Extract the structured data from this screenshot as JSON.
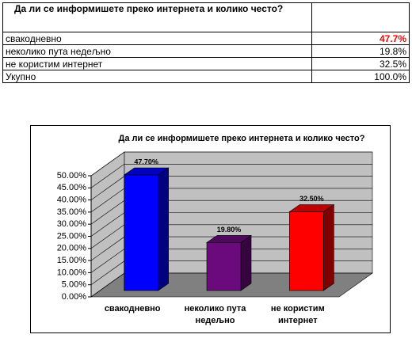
{
  "table": {
    "header": [
      "Да ли се информишете преко интернета и колико често?"
    ],
    "rows": [
      [
        "свакодневно",
        "47.7%"
      ],
      [
        "неколико пута недељно",
        "19.8%"
      ],
      [
        "не користим интернет",
        "32.5%"
      ],
      [
        "Укупно",
        "100.0%"
      ]
    ]
  },
  "chart_data": {
    "type": "bar3d",
    "title": "Да ли се информишете преко интернета и колико често?",
    "categories": [
      "свакодневно",
      "неколико пута недељно",
      "не користим интернет"
    ],
    "values": [
      47.7,
      19.8,
      32.5
    ],
    "value_labels": [
      "47.70%",
      "19.80%",
      "32.50%"
    ],
    "colors": [
      "#0000ff",
      "#6b0a7d",
      "#ff0000"
    ],
    "ylim": [
      0,
      50
    ],
    "yticks": [
      {
        "value": 0,
        "label": "0.00%"
      },
      {
        "value": 5,
        "label": "5.00%"
      },
      {
        "value": 10,
        "label": "10.00%"
      },
      {
        "value": 15,
        "label": "15.00%"
      },
      {
        "value": 20,
        "label": "20.00%"
      },
      {
        "value": 25,
        "label": "25.00%"
      },
      {
        "value": 30,
        "label": "30.00%"
      },
      {
        "value": 35,
        "label": "35.00%"
      },
      {
        "value": 40,
        "label": "40.00%"
      },
      {
        "value": 45,
        "label": "45.00%"
      },
      {
        "value": 50,
        "label": "50.00%"
      }
    ],
    "grid": true
  }
}
